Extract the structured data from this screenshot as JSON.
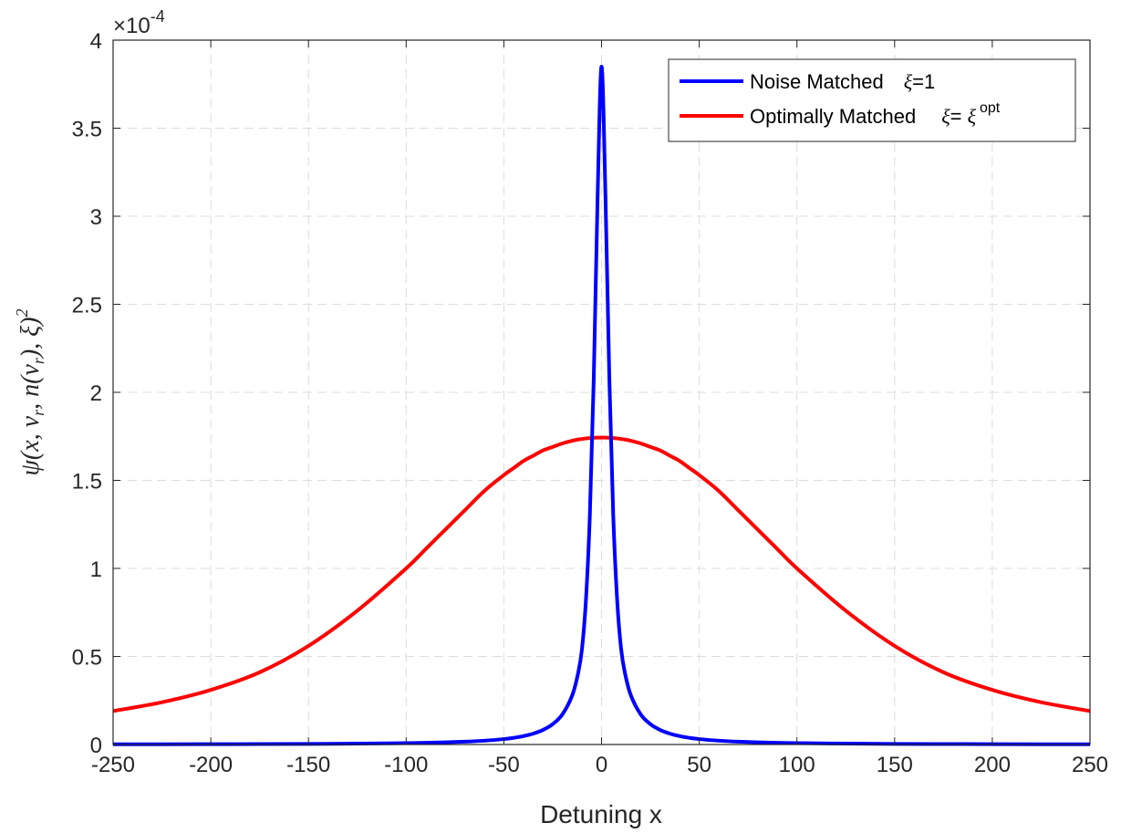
{
  "chart_data": {
    "type": "line",
    "xlabel": "Detuning x",
    "ylabel": "ψ(x, ν_r, n(ν_r), ξ)²",
    "ylabel_parts": {
      "psi": "ψ",
      "args": "(x, ν",
      "sub1": "r",
      "mid": ", n(ν",
      "sub2": "r",
      "end": "), ξ)",
      "sup": "2"
    },
    "xlim": [
      -250,
      250
    ],
    "ylim": [
      0,
      4
    ],
    "y_exponent_label": {
      "times": "×10",
      "exp": "-4"
    },
    "xticks": [
      -250,
      -200,
      -150,
      -100,
      -50,
      0,
      50,
      100,
      150,
      200,
      250
    ],
    "xtick_labels": [
      "-250",
      "-200",
      "-150",
      "-100",
      "-50",
      "0",
      "50",
      "100",
      "150",
      "200",
      "250"
    ],
    "yticks": [
      0,
      0.5,
      1,
      1.5,
      2,
      2.5,
      3,
      3.5,
      4
    ],
    "ytick_labels": [
      "0",
      "0.5",
      "1",
      "1.5",
      "2",
      "2.5",
      "3",
      "3.5",
      "4"
    ],
    "grid": true,
    "legend_position": "top-right",
    "x": [
      -250,
      -225,
      -200,
      -175,
      -150,
      -125,
      -100,
      -90,
      -80,
      -70,
      -60,
      -50,
      -45,
      -40,
      -35,
      -30,
      -25,
      -20,
      -15,
      -12,
      -10,
      -8,
      -6,
      -4,
      -2,
      0,
      2,
      4,
      6,
      8,
      10,
      12,
      15,
      20,
      25,
      30,
      35,
      40,
      45,
      50,
      60,
      70,
      80,
      90,
      100,
      125,
      150,
      175,
      200,
      225,
      250
    ],
    "series": [
      {
        "legend": {
          "text": "Noise Matched",
          "xi": "ξ",
          "rest": "=1"
        },
        "color": "#0000ff",
        "values": [
          0.0012,
          0.0015,
          0.002,
          0.0026,
          0.0035,
          0.0051,
          0.0079,
          0.0097,
          0.0123,
          0.016,
          0.0217,
          0.0308,
          0.0379,
          0.0477,
          0.0616,
          0.0826,
          0.1154,
          0.1719,
          0.2792,
          0.4043,
          0.5436,
          0.8186,
          1.2972,
          2.0745,
          3.1179,
          3.85,
          3.1179,
          2.0745,
          1.2972,
          0.8186,
          0.5436,
          0.4043,
          0.2792,
          0.1719,
          0.1154,
          0.0826,
          0.0616,
          0.0477,
          0.0379,
          0.0308,
          0.0217,
          0.016,
          0.0123,
          0.0097,
          0.0079,
          0.0051,
          0.0035,
          0.0026,
          0.002,
          0.0015,
          0.0012
        ]
      },
      {
        "legend": {
          "text": "Optimally Matched",
          "xi": "ξ",
          "rest": "= ",
          "xi2": "ξ",
          "sup": "opt"
        },
        "color": "#ff0000",
        "values": [
          0.19,
          0.24,
          0.31,
          0.41,
          0.56,
          0.76,
          1.0,
          1.11,
          1.22,
          1.33,
          1.44,
          1.53,
          1.57,
          1.61,
          1.64,
          1.67,
          1.69,
          1.71,
          1.725,
          1.732,
          1.735,
          1.738,
          1.74,
          1.742,
          1.743,
          1.743,
          1.743,
          1.742,
          1.74,
          1.738,
          1.735,
          1.732,
          1.725,
          1.71,
          1.69,
          1.67,
          1.64,
          1.61,
          1.57,
          1.53,
          1.44,
          1.33,
          1.22,
          1.11,
          1.0,
          0.76,
          0.56,
          0.41,
          0.31,
          0.24,
          0.19
        ]
      }
    ]
  }
}
